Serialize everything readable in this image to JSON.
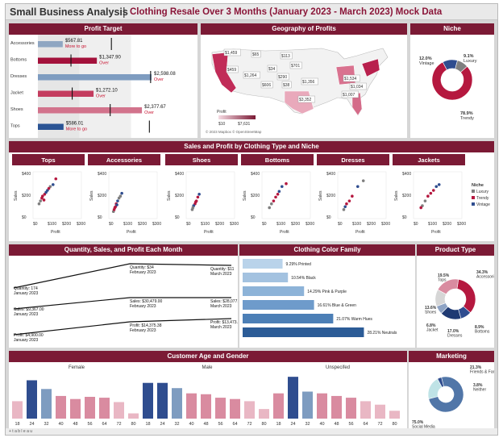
{
  "header": {
    "title": "Small Business Analysis",
    "separator": "|",
    "subtitle": "Clothing Resale Over 3 Months (January 2023 - March 2023)  Mock Data"
  },
  "footer": {
    "brand": "+ t a b l e a u"
  },
  "colors": {
    "maroon": "#7b1a35",
    "red": "#b5183f",
    "blue": "#2f4d8f",
    "steel": "#5b7ea8",
    "grey": "#7f7f7f"
  },
  "profit_target": {
    "title": "Profit Target",
    "rows": [
      {
        "category": "Accessories",
        "label": "$567.81",
        "note": "More to go",
        "value": 567.81,
        "target": 0.6,
        "color": "#8fa6c2"
      },
      {
        "category": "Bottoms",
        "label": "$1,347.90",
        "note": "Over",
        "value": 1347.9,
        "target": 0.27,
        "color": "#a3113b"
      },
      {
        "category": "Dresses",
        "label": "$2,598.08",
        "note": "Over",
        "value": 2598.08,
        "target": 0.92,
        "color": "#7e9cc0"
      },
      {
        "category": "Jacket",
        "label": "$1,272.10",
        "note": "Over",
        "value": 1272.1,
        "target": 0.28,
        "color": "#c43d5f"
      },
      {
        "category": "Shoes",
        "label": "$2,377.67",
        "note": "Over",
        "value": 2377.67,
        "target": 0.59,
        "color": "#d2738c"
      },
      {
        "category": "Tops",
        "label": "$586.01",
        "note": "More to go",
        "value": 586.01,
        "target": 0.91,
        "color": "#2b5494"
      }
    ]
  },
  "geography": {
    "title": "Geography of Profits",
    "legend_title": "Profit",
    "legend_min": "$10",
    "legend_max": "$7,631",
    "attribution": "© 2023 Mapbox  © OpenStreetMap",
    "labels": [
      "$1,459",
      "$459",
      "$1,264",
      "$65",
      "$34",
      "$113",
      "$290",
      "$701",
      "$606",
      "$38",
      "$1,356",
      "$3,352",
      "$1,534",
      "$1,034",
      "$1,007"
    ]
  },
  "niche": {
    "title": "Niche",
    "segments": [
      {
        "name": "Trendy",
        "pct": "78.9%",
        "value": 78.9,
        "color": "#b5183f"
      },
      {
        "name": "Vintage",
        "pct": "12.0%",
        "value": 12.0,
        "color": "#2f4d8f"
      },
      {
        "name": "Luxury",
        "pct": "9.1%",
        "value": 9.1,
        "color": "#7f7f7f"
      }
    ]
  },
  "scatter_section": {
    "title": "Sales and Profit by Clothing Type and Niche",
    "tabs": [
      "Tops",
      "Accessories",
      "Shoes",
      "Bottoms",
      "Dresses",
      "Jackets"
    ],
    "y_ticks": [
      "$400",
      "$200",
      "$0"
    ],
    "x_ticks": [
      "$0",
      "$100",
      "$200",
      "$300"
    ],
    "x_label": "Profit",
    "y_label": "Sales",
    "legend_title": "Niche",
    "legend": [
      {
        "name": "Luxury",
        "color": "#7f7f7f"
      },
      {
        "name": "Trendy",
        "color": "#b5183f"
      },
      {
        "name": "Vintage",
        "color": "#2f4d8f"
      }
    ]
  },
  "monthly": {
    "title": "Quantity, Sales, and Profit Each Month",
    "labels": [
      {
        "text": "Quantity: 174",
        "sub": "January 2023"
      },
      {
        "text": "Quantity: $34",
        "sub": "February 2023"
      },
      {
        "text": "Quantity: $11",
        "sub": "March 2023"
      },
      {
        "text": "Sales: $9,367.00",
        "sub": "January 2023"
      },
      {
        "text": "Sales: $30,479.00",
        "sub": "February 2023"
      },
      {
        "text": "Sales: $28,077.00",
        "sub": "March 2023"
      },
      {
        "text": "Profit: $4,900.00",
        "sub": "January 2023"
      },
      {
        "text": "Profit: $14,375.38",
        "sub": "February 2023"
      },
      {
        "text": "Profit: $13,473.19",
        "sub": "March 2023"
      }
    ]
  },
  "color_family": {
    "title": "Clothing Color Family",
    "bars": [
      {
        "label": "9.29% Printed",
        "value": 9.29,
        "color": "#b9d3ea"
      },
      {
        "label": "10.54% Black",
        "value": 10.54,
        "color": "#a3c2e0"
      },
      {
        "label": "14.29% Pink & Purple",
        "value": 14.29,
        "color": "#8db3d8"
      },
      {
        "label": "16.61% Blue & Green",
        "value": 16.61,
        "color": "#6e9bcb"
      },
      {
        "label": "21.07% Warm Hues",
        "value": 21.07,
        "color": "#4c7fb6"
      },
      {
        "label": "28.21% Neutrals",
        "value": 28.21,
        "color": "#2c5c97"
      }
    ]
  },
  "product_type": {
    "title": "Product Type",
    "segments": [
      {
        "name": "Accessories",
        "pct": "34.3%",
        "value": 34.3,
        "color": "#b5183f"
      },
      {
        "name": "Bottoms",
        "pct": "8.9%",
        "value": 8.9,
        "color": "#2f4d8f"
      },
      {
        "name": "Dresses",
        "pct": "17.0%",
        "value": 17.0,
        "color": "#1f3a73"
      },
      {
        "name": "Jacket",
        "pct": "6.8%",
        "value": 6.8,
        "color": "#8ea3c4"
      },
      {
        "name": "Shoes",
        "pct": "13.6%",
        "value": 13.6,
        "color": "#d6d6d6"
      },
      {
        "name": "Tops",
        "pct": "19.5%",
        "value": 19.5,
        "color": "#d98ba0"
      }
    ]
  },
  "age_gender": {
    "title": "Customer Age and Gender",
    "groups": [
      "Female",
      "Male",
      "Unspecifed"
    ],
    "ages": [
      "18",
      "24",
      "32",
      "40",
      "48",
      "56",
      "64",
      "72",
      "80"
    ],
    "female": [
      40,
      88,
      68,
      52,
      45,
      50,
      48,
      38,
      12
    ],
    "male": [
      82,
      82,
      70,
      58,
      56,
      48,
      45,
      40,
      22
    ],
    "unspec": [
      58,
      96,
      62,
      58,
      52,
      48,
      40,
      32,
      18
    ]
  },
  "marketing": {
    "title": "Marketing",
    "segments": [
      {
        "name": "Social Media",
        "pct": "75.0%",
        "value": 75.0,
        "color": "#5176a8"
      },
      {
        "name": "Friends & Family",
        "pct": "21.3%",
        "value": 21.3,
        "color": "#bfe3e6"
      },
      {
        "name": "Neither",
        "pct": "3.8%",
        "value": 3.8,
        "color": "#2f4d8f"
      }
    ]
  }
}
